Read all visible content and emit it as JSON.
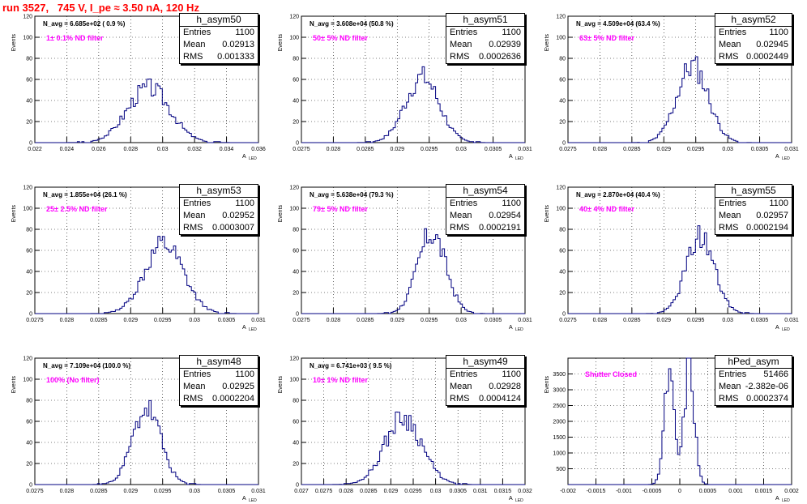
{
  "title": "run 3527,   745 V, I_pe ≈ 3.50 nA, 120 Hz",
  "ytitle": "Events",
  "xtitle": "A",
  "xtitle_sub": "LED",
  "chart_data": [
    {
      "type": "bar",
      "name": "h_asym50",
      "navg": "N_avg = 6.685e+02 ( 0.9 %)",
      "filter": "1± 0.1% ND filter",
      "stats": {
        "entries": "1100",
        "mean": "0.02913",
        "rms": "0.001333"
      },
      "stats_labels": {
        "entries": "Entries",
        "mean": "Mean",
        "rms": "RMS"
      },
      "xlim": [
        0.022,
        0.036
      ],
      "ylim": [
        0,
        120
      ],
      "xticks": [
        "0.022",
        "0.024",
        "0.026",
        "0.028",
        "0.03",
        "0.032",
        "0.034",
        "0.036"
      ],
      "yticks": [
        "0",
        "20",
        "40",
        "60",
        "80",
        "100",
        "120"
      ],
      "dist": {
        "mean": 0.02913,
        "rms": 0.001333,
        "peak": 52,
        "seed": 3
      }
    },
    {
      "type": "bar",
      "name": "h_asym51",
      "navg": "N_avg = 3.608e+04 (50.8 %)",
      "filter": "50± 5% ND filter",
      "stats": {
        "entries": "1100",
        "mean": "0.02939",
        "rms": "0.0002636"
      },
      "stats_labels": {
        "entries": "Entries",
        "mean": "Mean",
        "rms": "RMS"
      },
      "xlim": [
        0.0275,
        0.031
      ],
      "ylim": [
        0,
        120
      ],
      "xticks": [
        "0.0275",
        "0.028",
        "0.0285",
        "0.029",
        "0.0295",
        "0.03",
        "0.0305",
        "0.031"
      ],
      "yticks": [
        "0",
        "20",
        "40",
        "60",
        "80",
        "100",
        "120"
      ],
      "dist": {
        "mean": 0.02939,
        "rms": 0.0002636,
        "peak": 62,
        "seed": 7
      }
    },
    {
      "type": "bar",
      "name": "h_asym52",
      "navg": "N_avg = 4.509e+04 (63.4 %)",
      "filter": "63± 5% ND filter",
      "stats": {
        "entries": "1100",
        "mean": "0.02945",
        "rms": "0.0002449"
      },
      "stats_labels": {
        "entries": "Entries",
        "mean": "Mean",
        "rms": "RMS"
      },
      "xlim": [
        0.0275,
        0.031
      ],
      "ylim": [
        0,
        120
      ],
      "xticks": [
        "0.0275",
        "0.028",
        "0.0285",
        "0.029",
        "0.0295",
        "0.03",
        "0.0305",
        "0.031"
      ],
      "yticks": [
        "0",
        "20",
        "40",
        "60",
        "80",
        "100",
        "120"
      ],
      "dist": {
        "mean": 0.02945,
        "rms": 0.0002449,
        "peak": 73,
        "seed": 11
      }
    },
    {
      "type": "bar",
      "name": "h_asym53",
      "navg": "N_avg = 1.855e+04 (26.1 %)",
      "filter": "25± 2.5% ND filter",
      "stats": {
        "entries": "1100",
        "mean": "0.02952",
        "rms": "0.0003007"
      },
      "stats_labels": {
        "entries": "Entries",
        "mean": "Mean",
        "rms": "RMS"
      },
      "xlim": [
        0.0275,
        0.031
      ],
      "ylim": [
        0,
        120
      ],
      "xticks": [
        "0.0275",
        "0.028",
        "0.0285",
        "0.029",
        "0.0295",
        "0.03",
        "0.0305",
        "0.031"
      ],
      "yticks": [
        "0",
        "20",
        "40",
        "60",
        "80",
        "100",
        "120"
      ],
      "dist": {
        "mean": 0.02952,
        "rms": 0.0003007,
        "peak": 66,
        "seed": 13
      }
    },
    {
      "type": "bar",
      "name": "h_asym54",
      "navg": "N_avg = 5.638e+04 (79.3 %)",
      "filter": "79± 5% ND filter",
      "stats": {
        "entries": "1100",
        "mean": "0.02954",
        "rms": "0.0002191"
      },
      "stats_labels": {
        "entries": "Entries",
        "mean": "Mean",
        "rms": "RMS"
      },
      "xlim": [
        0.0275,
        0.031
      ],
      "ylim": [
        0,
        120
      ],
      "xticks": [
        "0.0275",
        "0.028",
        "0.0285",
        "0.029",
        "0.0295",
        "0.03",
        "0.0305",
        "0.031"
      ],
      "yticks": [
        "0",
        "20",
        "40",
        "60",
        "80",
        "100",
        "120"
      ],
      "dist": {
        "mean": 0.02954,
        "rms": 0.0002191,
        "peak": 76,
        "seed": 17
      }
    },
    {
      "type": "bar",
      "name": "h_asym55",
      "navg": "N_avg = 2.870e+04 (40.4 %)",
      "filter": "40± 4% ND filter",
      "stats": {
        "entries": "1100",
        "mean": "0.02957",
        "rms": "0.0002194"
      },
      "stats_labels": {
        "entries": "Entries",
        "mean": "Mean",
        "rms": "RMS"
      },
      "xlim": [
        0.0275,
        0.031
      ],
      "ylim": [
        0,
        120
      ],
      "xticks": [
        "0.0275",
        "0.028",
        "0.0285",
        "0.029",
        "0.0295",
        "0.03",
        "0.0305",
        "0.031"
      ],
      "yticks": [
        "0",
        "20",
        "40",
        "60",
        "80",
        "100",
        "120"
      ],
      "dist": {
        "mean": 0.02957,
        "rms": 0.0002194,
        "peak": 73,
        "seed": 19
      }
    },
    {
      "type": "bar",
      "name": "h_asym48",
      "navg": "N_avg = 7.109e+04 (100.0 %)",
      "filter": "100% (No filter)",
      "stats": {
        "entries": "1100",
        "mean": "0.02925",
        "rms": "0.0002204"
      },
      "stats_labels": {
        "entries": "Entries",
        "mean": "Mean",
        "rms": "RMS"
      },
      "xlim": [
        0.0275,
        0.031
      ],
      "ylim": [
        0,
        120
      ],
      "xticks": [
        "0.0275",
        "0.028",
        "0.0285",
        "0.029",
        "0.0295",
        "0.03",
        "0.0305",
        "0.031"
      ],
      "yticks": [
        "0",
        "20",
        "40",
        "60",
        "80",
        "100",
        "120"
      ],
      "dist": {
        "mean": 0.02925,
        "rms": 0.0002204,
        "peak": 72,
        "seed": 23
      }
    },
    {
      "type": "bar",
      "name": "h_asym49",
      "navg": "N_avg = 6.741e+03 ( 9.5 %)",
      "filter": "10± 1% ND filter",
      "stats": {
        "entries": "1100",
        "mean": "0.02928",
        "rms": "0.0004124"
      },
      "stats_labels": {
        "entries": "Entries",
        "mean": "Mean",
        "rms": "RMS"
      },
      "xlim": [
        0.027,
        0.032
      ],
      "ylim": [
        0,
        120
      ],
      "xticks": [
        "0.027",
        "0.0275",
        "0.028",
        "0.0285",
        "0.029",
        "0.0295",
        "0.03",
        "0.0305",
        "0.031",
        "0.0315",
        "0.032"
      ],
      "yticks": [
        "0",
        "20",
        "40",
        "60",
        "80",
        "100",
        "120"
      ],
      "dist": {
        "mean": 0.02928,
        "rms": 0.0004124,
        "peak": 64,
        "seed": 29
      }
    },
    {
      "type": "bar",
      "name": "hPed_asym",
      "navg": "",
      "filter": "Shutter Closed",
      "stats": {
        "entries": "51466",
        "mean": "-2.382e-06",
        "rms": "0.0002374"
      },
      "stats_labels": {
        "entries": "Entries",
        "mean": "Mean",
        "rms": "RMS"
      },
      "xlim": [
        -0.002,
        0.002
      ],
      "ylim": [
        0,
        4000
      ],
      "xticks": [
        "-0.002",
        "-0.0015",
        "-0.001",
        "-0.0005",
        "0",
        "0.0005",
        "0.001",
        "0.0015",
        "0.002"
      ],
      "yticks": [
        "500",
        "1000",
        "1500",
        "2000",
        "2500",
        "3000",
        "3500"
      ],
      "dist": {
        "bimodal": true,
        "mean": -2.4e-06,
        "rms": 0.0002374,
        "peak": 3800,
        "seed": 31
      }
    }
  ]
}
